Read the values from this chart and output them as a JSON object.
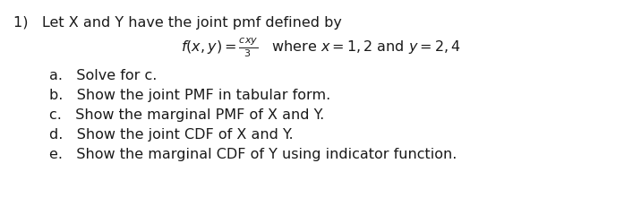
{
  "background_color": "#ffffff",
  "text_color": "#1a1a1a",
  "title_line": "1)   Let X and Y have the joint pmf defined by",
  "items": [
    "a.   Solve for c.",
    "b.   Show the joint PMF in tabular form.",
    "c.   Show the marginal PMF of X and Y.",
    "d.   Show the joint CDF of X and Y.",
    "e.   Show the marginal CDF of Y using indicator function."
  ],
  "title_fontsize": 11.5,
  "formula_fontsize": 11.5,
  "items_fontsize": 11.5
}
